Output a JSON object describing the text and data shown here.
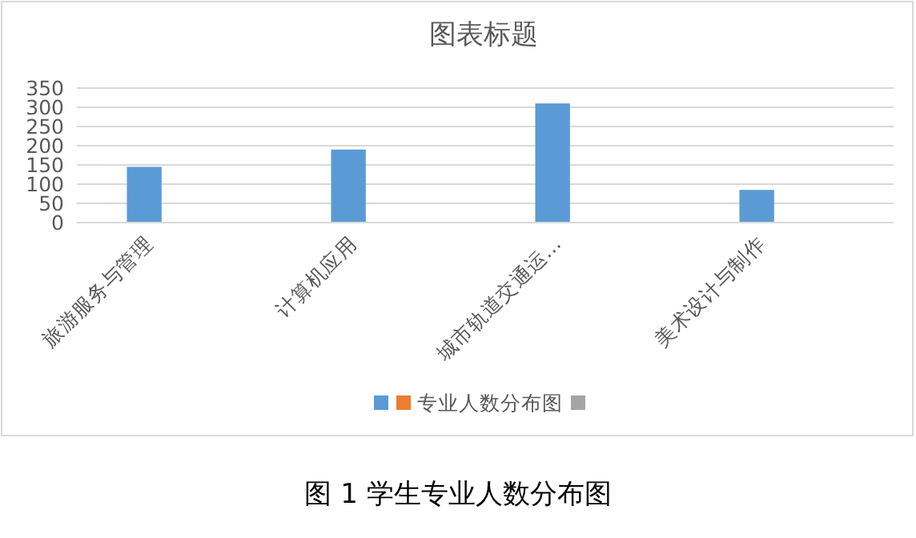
{
  "chart_data": {
    "type": "bar",
    "title": "图表标题",
    "categories": [
      "旅游服务与管理",
      "计算机应用",
      "城市轨道交通运…",
      "美术设计与制作"
    ],
    "series": [
      {
        "color": "#5b9bd5",
        "values": [
          145,
          190,
          310,
          85
        ]
      },
      {
        "name": "专业人数分布图",
        "color": "#ed7d31",
        "values": [
          null,
          null,
          null,
          null
        ]
      },
      {
        "color": "#a5a5a5",
        "values": [
          null,
          null,
          null,
          null
        ]
      }
    ],
    "ylim": [
      0,
      350
    ],
    "yticks": [
      0,
      50,
      100,
      150,
      200,
      250,
      300,
      350
    ],
    "grid": "y",
    "legend": "bottom",
    "annotations": [
      "图 1  学生专业人数分布图"
    ]
  }
}
